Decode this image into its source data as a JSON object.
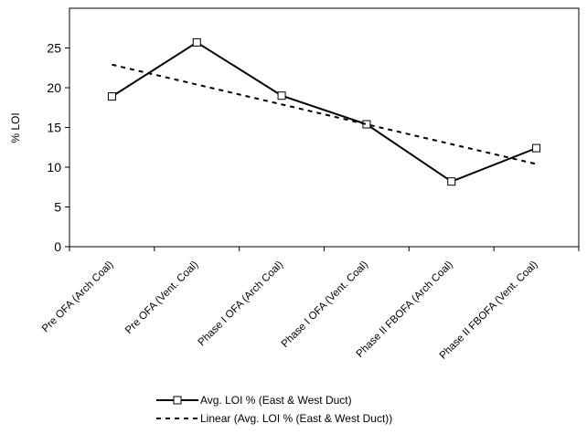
{
  "chart_data": {
    "type": "line",
    "title": "",
    "xlabel": "",
    "ylabel": "% LOI",
    "ylim": [
      0,
      30
    ],
    "yticks": [
      0,
      5,
      10,
      15,
      20,
      25
    ],
    "grid": false,
    "legend_position": "bottom",
    "categories": [
      "Pre OFA (Arch Coal)",
      "Pre OFA (Vent. Coal)",
      "Phase I OFA (Arch Coal)",
      "Phase I OFA (Vent. Coal)",
      "Phase II FBOFA (Arch Coal)",
      "Phase II FBOFA (Vent. Coal)"
    ],
    "series": [
      {
        "name": "Avg. LOI % (East & West Duct)",
        "style": "solid-with-square-markers",
        "color": "#000000",
        "values": [
          18.9,
          25.7,
          19.0,
          15.4,
          8.2,
          12.4
        ]
      },
      {
        "name": "Linear (Avg. LOI % (East & West Duct))",
        "style": "dashed-trendline",
        "color": "#000000",
        "values": [
          22.9,
          20.4,
          17.9,
          15.4,
          12.9,
          10.4
        ]
      }
    ]
  }
}
